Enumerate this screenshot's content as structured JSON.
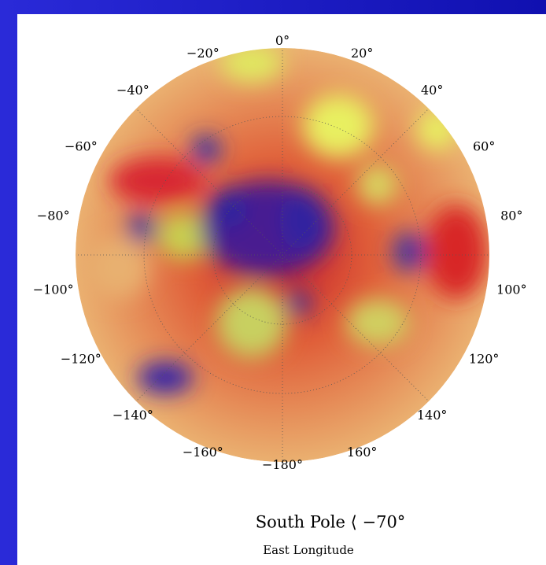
{
  "map": {
    "longitude_labels": [
      "0°",
      "20°",
      "40°",
      "60°",
      "80°",
      "100°",
      "120°",
      "140°",
      "160°",
      "−180°",
      "−160°",
      "−140°",
      "−120°",
      "−100°",
      "−80°",
      "−60°",
      "−40°",
      "−20°"
    ],
    "title": "South Pole ⟨ −70°",
    "subtitle": "East Longitude"
  }
}
